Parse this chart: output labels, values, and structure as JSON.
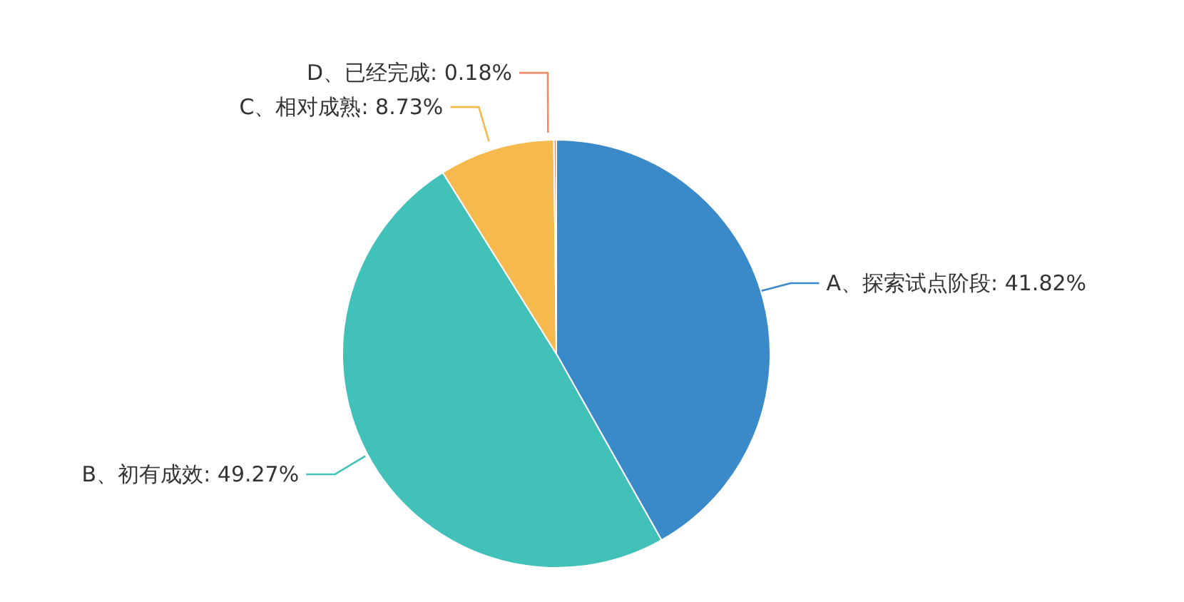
{
  "chart_data": {
    "type": "pie",
    "categories": [
      "A、探索试点阶段",
      "B、初有成效",
      "C、相对成熟",
      "D、已经完成"
    ],
    "values": [
      41.82,
      49.27,
      8.73,
      0.18
    ],
    "value_labels": [
      "41.82%",
      "49.27%",
      "8.73%",
      "0.18%"
    ],
    "colors": [
      "#3a8ac9",
      "#42c1b8",
      "#f5b94e",
      "#f08a6a"
    ],
    "legend": false
  }
}
